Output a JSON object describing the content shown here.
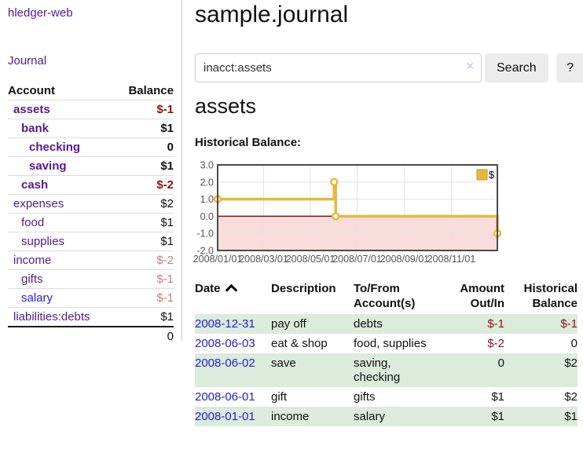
{
  "sidebar": {
    "app_title": "hledger-web",
    "journal_label": "Journal",
    "accounts_header": {
      "account": "Account",
      "balance": "Balance"
    },
    "accounts": [
      {
        "name": "assets",
        "depth": 1,
        "balance": "$-1",
        "bold": true,
        "negative": true
      },
      {
        "name": "bank",
        "depth": 2,
        "balance": "$1",
        "bold": true
      },
      {
        "name": "checking",
        "depth": 3,
        "balance": "0",
        "bold": true
      },
      {
        "name": "saving",
        "depth": 3,
        "balance": "$1",
        "bold": true
      },
      {
        "name": "cash",
        "depth": 2,
        "balance": "$-2",
        "bold": true,
        "negative": true
      },
      {
        "name": "expenses",
        "depth": 1,
        "balance": "$2"
      },
      {
        "name": "food",
        "depth": 2,
        "balance": "$1"
      },
      {
        "name": "supplies",
        "depth": 2,
        "balance": "$1"
      },
      {
        "name": "income",
        "depth": 1,
        "balance": "$-2",
        "negative": true,
        "dim": true
      },
      {
        "name": "gifts",
        "depth": 2,
        "balance": "$-1",
        "negative": true,
        "dim": true
      },
      {
        "name": "salary",
        "depth": 2,
        "balance": "$-1",
        "negative": true,
        "dim": true,
        "unvisited": true
      },
      {
        "name": "liabilities:debts",
        "depth": 1,
        "balance": "$1"
      }
    ],
    "total": "0"
  },
  "main": {
    "title": "sample.journal",
    "search": {
      "value": "inacct:assets",
      "clear_icon": "×",
      "button_label": "Search",
      "help_label": "?"
    },
    "account_heading": "assets",
    "chart_label": "Historical Balance:"
  },
  "chart_data": {
    "type": "line",
    "step": true,
    "title": "Historical Balance",
    "xlabel": "",
    "ylabel": "",
    "x_range": [
      "2008-01-01",
      "2008-12-31"
    ],
    "ylim": [
      -2,
      3
    ],
    "yticks": [
      3.0,
      2.0,
      1.0,
      0.0,
      -1.0,
      -2.0
    ],
    "xticks": [
      {
        "date": "2008-01-01",
        "label": "2008/01/01"
      },
      {
        "date": "2008-03-01",
        "label": "2008/03/01"
      },
      {
        "date": "2008-05-01",
        "label": "2008/05/01"
      },
      {
        "date": "2008-07-01",
        "label": "2008/07/01"
      },
      {
        "date": "2008-09-01",
        "label": "2008/09/01"
      },
      {
        "date": "2008-11-01",
        "label": "2008/11/01"
      }
    ],
    "grid": true,
    "legend_position": "top-right",
    "series": [
      {
        "name": "$",
        "color": "#e5ba3a",
        "points": [
          {
            "date": "2008-01-01",
            "value": 1
          },
          {
            "date": "2008-06-01",
            "value": 2
          },
          {
            "date": "2008-06-03",
            "value": 0
          },
          {
            "date": "2008-12-31",
            "value": -1
          }
        ]
      }
    ],
    "negative_region_color": "#f9dcdc",
    "zero_line_color": "#7d1010",
    "gridline_color": "#e3e3e3",
    "border_color": "#4a4a4a",
    "tick_text_color": "#545454"
  },
  "register": {
    "headers": [
      "Date",
      "Description",
      "To/From Account(s)",
      "Amount Out/In",
      "Historical Balance"
    ],
    "rows": [
      {
        "date": "2008-12-31",
        "description": "pay off",
        "accounts": "debts",
        "amount": "$-1",
        "amount_negative": true,
        "balance": "$-1",
        "balance_negative": true,
        "highlight": true
      },
      {
        "date": "2008-06-03",
        "description": "eat & shop",
        "accounts": "food, supplies",
        "amount": "$-2",
        "amount_negative": true,
        "balance": "0",
        "balance_negative": false,
        "highlight": false
      },
      {
        "date": "2008-06-02",
        "description": "save",
        "accounts": "saving, checking",
        "amount": "0",
        "amount_negative": false,
        "balance": "$2",
        "balance_negative": false,
        "highlight": true
      },
      {
        "date": "2008-06-01",
        "description": "gift",
        "accounts": "gifts",
        "amount": "$1",
        "amount_negative": false,
        "balance": "$2",
        "balance_negative": false,
        "highlight": false
      },
      {
        "date": "2008-01-01",
        "description": "income",
        "accounts": "salary",
        "amount": "$1",
        "amount_negative": false,
        "balance": "$1",
        "balance_negative": false,
        "highlight": true
      }
    ]
  },
  "colors": {
    "link_purple": "#551a8b",
    "link_blue": "#2222d2",
    "negative_red": "#8f1212",
    "negative_dim": "#c07f7f",
    "row_highlight_green": "#dcebdc",
    "accent_gold": "#e5ba3a"
  }
}
